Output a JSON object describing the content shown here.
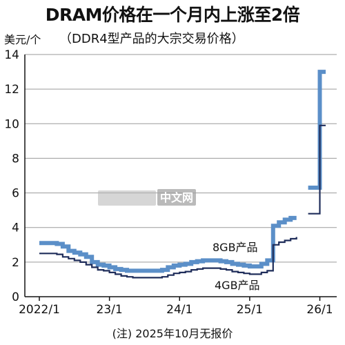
{
  "chart_data": {
    "type": "line",
    "title": "DRAM价格在一个月内上涨至2倍",
    "subtitle": "（DDR4型产品的大宗交易价格）",
    "ylabel": "美元/个",
    "note": "(注)  2025年10月无报价",
    "watermark": "中文网",
    "ylim": [
      0,
      14
    ],
    "yticks": [
      "0",
      "2",
      "4",
      "6",
      "8",
      "10",
      "12",
      "14"
    ],
    "xlim": [
      "2022-01",
      "2026-02"
    ],
    "xticks": [
      {
        "date": "2022-01",
        "label": "2022/1"
      },
      {
        "date": "2023-01",
        "label": "23/1"
      },
      {
        "date": "2024-01",
        "label": "24/1"
      },
      {
        "date": "2025-01",
        "label": "25/1"
      },
      {
        "date": "2026-01",
        "label": "26/1"
      }
    ],
    "grid": true,
    "step": true,
    "series": [
      {
        "name": "8GB产品",
        "color": "#5b8fc8",
        "segments": [
          [
            [
              "2022-01",
              3.1
            ],
            [
              "2022-02",
              3.1
            ],
            [
              "2022-03",
              3.1
            ],
            [
              "2022-04",
              3.05
            ],
            [
              "2022-05",
              2.9
            ],
            [
              "2022-06",
              2.65
            ],
            [
              "2022-07",
              2.55
            ],
            [
              "2022-08",
              2.45
            ],
            [
              "2022-09",
              2.3
            ],
            [
              "2022-10",
              2.0
            ],
            [
              "2022-11",
              1.85
            ],
            [
              "2022-12",
              1.8
            ],
            [
              "2023-01",
              1.7
            ],
            [
              "2023-02",
              1.6
            ],
            [
              "2023-03",
              1.55
            ],
            [
              "2023-04",
              1.5
            ],
            [
              "2023-05",
              1.5
            ],
            [
              "2023-06",
              1.5
            ],
            [
              "2023-07",
              1.5
            ],
            [
              "2023-08",
              1.5
            ],
            [
              "2023-09",
              1.5
            ],
            [
              "2023-10",
              1.55
            ],
            [
              "2023-11",
              1.7
            ],
            [
              "2023-12",
              1.8
            ],
            [
              "2024-01",
              1.85
            ],
            [
              "2024-02",
              1.9
            ],
            [
              "2024-03",
              2.0
            ],
            [
              "2024-04",
              2.05
            ],
            [
              "2024-05",
              2.1
            ],
            [
              "2024-06",
              2.1
            ],
            [
              "2024-07",
              2.1
            ],
            [
              "2024-08",
              2.05
            ],
            [
              "2024-09",
              2.0
            ],
            [
              "2024-10",
              1.9
            ],
            [
              "2024-11",
              1.85
            ],
            [
              "2024-12",
              1.8
            ],
            [
              "2025-01",
              1.75
            ],
            [
              "2025-02",
              1.75
            ],
            [
              "2025-03",
              1.9
            ],
            [
              "2025-04",
              2.1
            ],
            [
              "2025-05",
              4.1
            ],
            [
              "2025-06",
              4.3
            ],
            [
              "2025-07",
              4.45
            ],
            [
              "2025-08",
              4.55
            ],
            [
              "2025-09",
              4.55
            ]
          ],
          [
            [
              "2025-11",
              6.3
            ],
            [
              "2025-12",
              6.3
            ],
            [
              "2026-01",
              13.0
            ],
            [
              "2026-02",
              13.0
            ]
          ]
        ]
      },
      {
        "name": "4GB产品",
        "color": "#1f2d5a",
        "segments": [
          [
            [
              "2022-01",
              2.5
            ],
            [
              "2022-02",
              2.5
            ],
            [
              "2022-03",
              2.5
            ],
            [
              "2022-04",
              2.45
            ],
            [
              "2022-05",
              2.3
            ],
            [
              "2022-06",
              2.2
            ],
            [
              "2022-07",
              2.1
            ],
            [
              "2022-08",
              2.0
            ],
            [
              "2022-09",
              1.85
            ],
            [
              "2022-10",
              1.7
            ],
            [
              "2022-11",
              1.55
            ],
            [
              "2022-12",
              1.5
            ],
            [
              "2023-01",
              1.4
            ],
            [
              "2023-02",
              1.3
            ],
            [
              "2023-03",
              1.2
            ],
            [
              "2023-04",
              1.15
            ],
            [
              "2023-05",
              1.1
            ],
            [
              "2023-06",
              1.1
            ],
            [
              "2023-07",
              1.1
            ],
            [
              "2023-08",
              1.1
            ],
            [
              "2023-09",
              1.1
            ],
            [
              "2023-10",
              1.15
            ],
            [
              "2023-11",
              1.25
            ],
            [
              "2023-12",
              1.35
            ],
            [
              "2024-01",
              1.4
            ],
            [
              "2024-02",
              1.45
            ],
            [
              "2024-03",
              1.55
            ],
            [
              "2024-04",
              1.6
            ],
            [
              "2024-05",
              1.65
            ],
            [
              "2024-06",
              1.65
            ],
            [
              "2024-07",
              1.65
            ],
            [
              "2024-08",
              1.6
            ],
            [
              "2024-09",
              1.55
            ],
            [
              "2024-10",
              1.45
            ],
            [
              "2024-11",
              1.4
            ],
            [
              "2024-12",
              1.35
            ],
            [
              "2025-01",
              1.3
            ],
            [
              "2025-02",
              1.3
            ],
            [
              "2025-03",
              1.4
            ],
            [
              "2025-04",
              1.5
            ],
            [
              "2025-05",
              3.0
            ],
            [
              "2025-06",
              3.15
            ],
            [
              "2025-07",
              3.25
            ],
            [
              "2025-08",
              3.35
            ],
            [
              "2025-09",
              3.45
            ]
          ],
          [
            [
              "2025-11",
              4.8
            ],
            [
              "2025-12",
              4.8
            ],
            [
              "2026-01",
              9.9
            ],
            [
              "2026-02",
              9.9
            ]
          ]
        ]
      }
    ]
  }
}
